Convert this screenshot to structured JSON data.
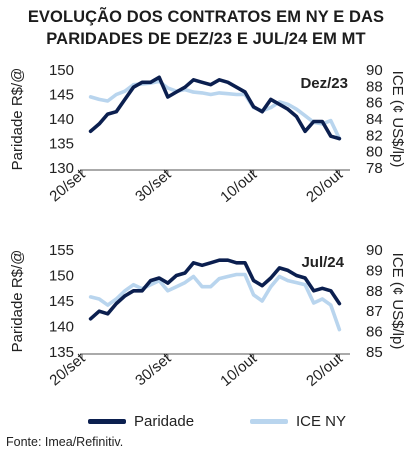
{
  "title_lines": [
    "EVOLUÇÃO DOS CONTRATOS EM NY E DAS",
    "PARIDADES DE DEZ/23 E JUL/24 EM MT"
  ],
  "colors": {
    "paridade": "#0b1f4f",
    "ice": "#b9d5ee",
    "axis": "#555555"
  },
  "legend": [
    {
      "label": "Paridade",
      "color": "#0b1f4f"
    },
    {
      "label": "ICE NY",
      "color": "#b9d5ee"
    }
  ],
  "source": "Fonte: Imea/Refinitiv.",
  "chart_data": [
    {
      "type": "line",
      "panel_label": "Dez/23",
      "x_tick_labels": [
        "20/set",
        "30/set",
        "10/out",
        "20/out"
      ],
      "x_ticks": [
        0,
        10,
        20,
        30
      ],
      "xlim": [
        0,
        31
      ],
      "ylabel_left": "Paridade R$/@",
      "ylabel_right": "ICE  (¢ US$/lp)",
      "ylim_left": [
        130,
        150
      ],
      "yticks_left": [
        130,
        135,
        140,
        145,
        150
      ],
      "ylim_right": [
        78,
        90
      ],
      "yticks_right": [
        78,
        80,
        82,
        84,
        86,
        88,
        90
      ],
      "series": [
        {
          "name": "Paridade",
          "axis": "left",
          "x": [
            1,
            2,
            3,
            4,
            5,
            6,
            7,
            8,
            9,
            10,
            11,
            12,
            13,
            14,
            15,
            16,
            17,
            18,
            19,
            20,
            21,
            22,
            23,
            24,
            25,
            26,
            27,
            28,
            29,
            30
          ],
          "values": [
            137.5,
            139,
            141,
            141.5,
            144,
            146.5,
            147.5,
            147.5,
            148.5,
            144.5,
            145.5,
            146.5,
            148,
            147.5,
            147,
            148,
            147.5,
            146.5,
            145.5,
            142.5,
            141.5,
            144,
            143,
            142,
            140.5,
            137.5,
            139.5,
            139.5,
            136.5,
            136
          ]
        },
        {
          "name": "ICE NY",
          "axis": "right",
          "x": [
            1,
            2,
            3,
            4,
            5,
            6,
            7,
            8,
            9,
            10,
            11,
            12,
            13,
            14,
            15,
            16,
            17,
            18,
            19,
            20,
            21,
            22,
            23,
            24,
            25,
            26,
            27,
            28,
            29,
            30
          ],
          "values": [
            86.7,
            86.4,
            86.2,
            87,
            87.4,
            88.2,
            88.3,
            88.4,
            88.6,
            87.8,
            87.4,
            87.6,
            87.3,
            87.2,
            87,
            87.2,
            87.1,
            87,
            87,
            85.4,
            85,
            85.4,
            86.1,
            85.8,
            85.2,
            84.4,
            83.6,
            83.4,
            83.8,
            81.6
          ]
        }
      ]
    },
    {
      "type": "line",
      "panel_label": "Jul/24",
      "x_tick_labels": [
        "20/set",
        "30/set",
        "10/out",
        "20/out"
      ],
      "x_ticks": [
        0,
        10,
        20,
        30
      ],
      "xlim": [
        0,
        31
      ],
      "ylabel_left": "Paridade R$/@",
      "ylabel_right": "ICE  (¢ US$/lp)",
      "ylim_left": [
        135,
        155
      ],
      "yticks_left": [
        135,
        140,
        145,
        150,
        155
      ],
      "ylim_right": [
        85,
        90
      ],
      "yticks_right": [
        85,
        86,
        87,
        88,
        89,
        90
      ],
      "series": [
        {
          "name": "Paridade",
          "axis": "left",
          "x": [
            1,
            2,
            3,
            4,
            5,
            6,
            7,
            8,
            9,
            10,
            11,
            12,
            13,
            14,
            15,
            16,
            17,
            18,
            19,
            20,
            21,
            22,
            23,
            24,
            25,
            26,
            27,
            28,
            29,
            30
          ],
          "values": [
            141.5,
            143,
            142.5,
            144.5,
            146,
            147,
            147,
            149,
            149.5,
            148.5,
            150,
            150.5,
            152.5,
            152,
            152.5,
            153,
            153,
            152.5,
            152.5,
            149,
            148,
            149.5,
            151.5,
            151,
            150,
            149.5,
            147,
            147.5,
            147,
            144.5
          ]
        },
        {
          "name": "ICE NY",
          "axis": "right",
          "x": [
            1,
            2,
            3,
            4,
            5,
            6,
            7,
            8,
            9,
            10,
            11,
            12,
            13,
            14,
            15,
            16,
            17,
            18,
            19,
            20,
            21,
            22,
            23,
            24,
            25,
            26,
            27,
            28,
            29,
            30
          ],
          "values": [
            87.7,
            87.6,
            87.3,
            87.6,
            88,
            88.3,
            88.1,
            88.3,
            88.5,
            88,
            88.2,
            88.4,
            88.7,
            88.2,
            88.2,
            88.6,
            88.7,
            88.8,
            88.8,
            87.8,
            87.5,
            88.2,
            88.7,
            88.5,
            88.4,
            88.3,
            87.4,
            87.6,
            87.3,
            86.1
          ]
        }
      ]
    }
  ]
}
